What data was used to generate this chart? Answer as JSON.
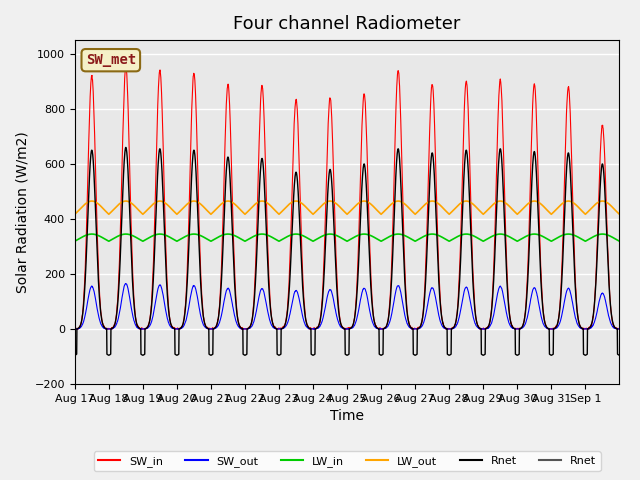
{
  "title": "Four channel Radiometer",
  "xlabel": "Time",
  "ylabel": "Solar Radiation (W/m2)",
  "ylim": [
    -200,
    1050
  ],
  "n_days": 16,
  "background_color": "#e8e8e8",
  "annotation_text": "SW_met",
  "annotation_bg": "#f5f0c8",
  "annotation_edge": "#8b6914",
  "sw_in_peaks": [
    920,
    950,
    940,
    930,
    890,
    885,
    835,
    840,
    855,
    940,
    890,
    900,
    905,
    890,
    880,
    740
  ],
  "sw_out_peaks": [
    155,
    165,
    160,
    158,
    148,
    147,
    140,
    143,
    148,
    158,
    150,
    152,
    155,
    150,
    148,
    130
  ],
  "rnet_peaks": [
    650,
    660,
    655,
    650,
    625,
    620,
    570,
    580,
    600,
    655,
    640,
    650,
    655,
    645,
    640,
    600
  ],
  "lw_in_base": 300,
  "lw_in_bump": 45,
  "lw_out_base": 390,
  "lw_out_bump": 75,
  "xtick_labels": [
    "Aug 17",
    "Aug 18",
    "Aug 19",
    "Aug 20",
    "Aug 21",
    "Aug 22",
    "Aug 23",
    "Aug 24",
    "Aug 25",
    "Aug 26",
    "Aug 27",
    "Aug 28",
    "Aug 29",
    "Aug 30",
    "Aug 31",
    "Sep 1"
  ],
  "sw_in_color": "#ff0000",
  "sw_out_color": "#0000ff",
  "lw_in_color": "#00cc00",
  "lw_out_color": "#ffa500",
  "rnet_color1": "#000000",
  "rnet_color2": "#555555",
  "grid_color": "#ffffff",
  "title_fontsize": 13,
  "axis_fontsize": 10,
  "tick_fontsize": 8
}
